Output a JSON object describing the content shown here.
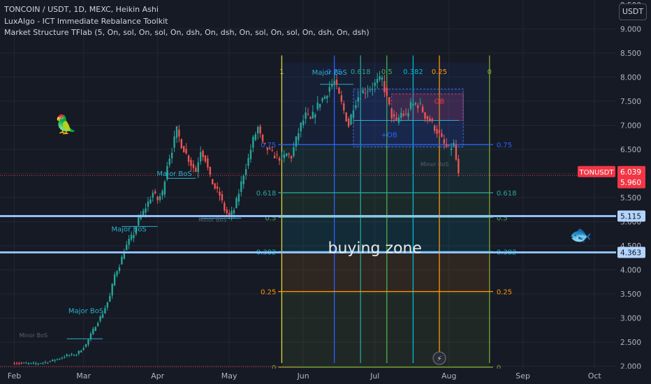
{
  "header": {
    "lines": [
      "TONCOIN / USDT, 1D, MEXC, Heikin Ashi",
      "LuxAlgo - ICT Immediate Rebalance Toolkit",
      "Market Structure TFlab (5, On, sol, On, sol, On, dsh, On, dsh, On, sol, On, sol, On, dsh, On, dsh)"
    ],
    "currency_button": "USDT"
  },
  "emojis": {
    "parrot": "🦜",
    "fish": "🐟"
  },
  "chart_data": {
    "type": "candlestick",
    "symbol": "TONCOIN / USDT",
    "interval": "1D",
    "exchange": "MEXC",
    "style": "Heikin Ashi",
    "y_axis": {
      "range": [
        1.95,
        9.6
      ],
      "ticks": [
        "9.000",
        "8.500",
        "8.000",
        "7.500",
        "7.000",
        "6.500",
        "6.000",
        "5.500",
        "5.000",
        "4.500",
        "4.000",
        "3.500",
        "3.000",
        "2.500",
        "2.000"
      ],
      "top_partial_tick": "9.500"
    },
    "x_axis": {
      "ticks": [
        {
          "label": "Feb",
          "day": 0
        },
        {
          "label": "Mar",
          "day": 29
        },
        {
          "label": "Apr",
          "day": 60
        },
        {
          "label": "May",
          "day": 90
        },
        {
          "label": "Jun",
          "day": 121
        },
        {
          "label": "Jul",
          "day": 151
        },
        {
          "label": "Aug",
          "day": 182
        },
        {
          "label": "Sep",
          "day": 213
        },
        {
          "label": "Oct",
          "day": 243
        }
      ],
      "day_range": [
        -6,
        252
      ]
    },
    "price_path": [
      [
        0,
        2.07
      ],
      [
        8,
        2.05
      ],
      [
        15,
        2.1
      ],
      [
        22,
        2.22
      ],
      [
        26,
        2.25
      ],
      [
        30,
        2.45
      ],
      [
        34,
        2.85
      ],
      [
        37,
        3.1
      ],
      [
        40,
        3.45
      ],
      [
        42,
        3.9
      ],
      [
        44,
        4.1
      ],
      [
        46,
        4.4
      ],
      [
        48,
        4.6
      ],
      [
        50,
        4.75
      ],
      [
        52,
        5.05
      ],
      [
        54,
        5.2
      ],
      [
        56,
        5.4
      ],
      [
        58,
        5.6
      ],
      [
        60,
        5.45
      ],
      [
        62,
        5.6
      ],
      [
        64,
        6.2
      ],
      [
        66,
        6.5
      ],
      [
        68,
        6.9
      ],
      [
        70,
        6.6
      ],
      [
        72,
        6.4
      ],
      [
        74,
        6.2
      ],
      [
        76,
        6.05
      ],
      [
        78,
        6.5
      ],
      [
        80,
        6.3
      ],
      [
        82,
        5.9
      ],
      [
        84,
        5.7
      ],
      [
        86,
        5.55
      ],
      [
        88,
        5.25
      ],
      [
        90,
        5.1
      ],
      [
        92,
        5.25
      ],
      [
        94,
        5.6
      ],
      [
        96,
        6.0
      ],
      [
        98,
        6.3
      ],
      [
        100,
        6.7
      ],
      [
        102,
        6.95
      ],
      [
        104,
        6.6
      ],
      [
        106,
        6.5
      ],
      [
        108,
        6.4
      ],
      [
        110,
        6.35
      ],
      [
        112,
        6.3
      ],
      [
        114,
        6.4
      ],
      [
        116,
        6.35
      ],
      [
        118,
        6.7
      ],
      [
        120,
        7.0
      ],
      [
        122,
        7.2
      ],
      [
        124,
        7.1
      ],
      [
        126,
        7.3
      ],
      [
        128,
        7.5
      ],
      [
        130,
        7.6
      ],
      [
        132,
        7.8
      ],
      [
        134,
        7.9
      ],
      [
        136,
        7.6
      ],
      [
        138,
        7.3
      ],
      [
        140,
        7.0
      ],
      [
        142,
        7.4
      ],
      [
        144,
        7.6
      ],
      [
        146,
        7.7
      ],
      [
        148,
        7.75
      ],
      [
        150,
        7.8
      ],
      [
        152,
        7.9
      ],
      [
        154,
        7.95
      ],
      [
        156,
        7.55
      ],
      [
        158,
        7.2
      ],
      [
        160,
        7.05
      ],
      [
        162,
        7.25
      ],
      [
        164,
        7.2
      ],
      [
        166,
        7.4
      ],
      [
        168,
        7.45
      ],
      [
        170,
        7.4
      ],
      [
        172,
        7.2
      ],
      [
        174,
        7.1
      ],
      [
        176,
        6.95
      ],
      [
        178,
        6.8
      ],
      [
        180,
        6.6
      ],
      [
        182,
        6.5
      ],
      [
        184,
        6.6
      ],
      [
        186,
        5.96
      ]
    ],
    "price_labels": [
      {
        "symbol": "TONUSDT",
        "value": 6.039
      },
      {
        "value": 5.96
      }
    ],
    "horizontal_lines": [
      {
        "value": 5.115,
        "label": "5.115"
      },
      {
        "value": 4.363,
        "label": "4.363"
      }
    ],
    "fib_time_zones": {
      "start_day": 112,
      "end_day": 199,
      "lines": [
        {
          "label": "1",
          "day": 112,
          "color": "#e0d838"
        },
        {
          "label": "0.75",
          "day": 134,
          "color": "#2962ff"
        },
        {
          "label": "0.618",
          "day": 145,
          "color": "#26a69a"
        },
        {
          "label": "0.5",
          "day": 156,
          "color": "#4caf50"
        },
        {
          "label": "0.382",
          "day": 167,
          "color": "#00bcd4"
        },
        {
          "label": "0.25",
          "day": 178,
          "color": "#ff9800"
        },
        {
          "label": "0",
          "day": 199,
          "color": "#7ca832"
        }
      ]
    },
    "fib_retracement": {
      "start_day": 112,
      "end_day": 199,
      "levels": [
        {
          "left_label": "0.75",
          "right_label": "0.75",
          "value": 6.6,
          "color": "#2962ff"
        },
        {
          "left_label": "0.618",
          "right_label": "0.618",
          "value": 5.6,
          "color": "#26a69a"
        },
        {
          "left_label": "0.5",
          "right_label": "0.5",
          "value": 5.09,
          "color": "#4caf50"
        },
        {
          "left_label": "0.382",
          "right_label": "0.382",
          "value": 4.38,
          "color": "#00bcd4"
        },
        {
          "left_label": "0.25",
          "right_label": "0.25",
          "value": 3.55,
          "color": "#ff9800"
        },
        {
          "left_label": "0",
          "right_label": "0",
          "value": 1.98,
          "color": "#7ca832"
        }
      ]
    },
    "structure_labels": [
      {
        "text": "Major BoS",
        "day": 30,
        "value": 3.1,
        "color": "#2ab0c8"
      },
      {
        "text": "Major BoS",
        "day": 48,
        "value": 4.8,
        "color": "#2ab0c8"
      },
      {
        "text": "Major BoS",
        "day": 67,
        "value": 5.95,
        "color": "#2ab0c8"
      },
      {
        "text": "Major BoS",
        "day": 132,
        "value": 8.05,
        "color": "#2ab0c8"
      },
      {
        "text": "Minor BoS",
        "day": 8,
        "value": 2.6,
        "color": "#5d606b"
      },
      {
        "text": "Minor BoS",
        "day": 83,
        "value": 5.0,
        "color": "#5d606b"
      },
      {
        "text": "Minor BoS",
        "day": 176,
        "value": 6.15,
        "color": "#5d606b"
      },
      {
        "text": "OB",
        "day": 178,
        "value": 7.45,
        "color": "#f23645"
      },
      {
        "text": "+OB",
        "day": 157,
        "value": 6.75,
        "color": "#2962ff"
      }
    ],
    "annotation": {
      "text": "buying zone",
      "day": 151,
      "value": 4.35
    }
  }
}
